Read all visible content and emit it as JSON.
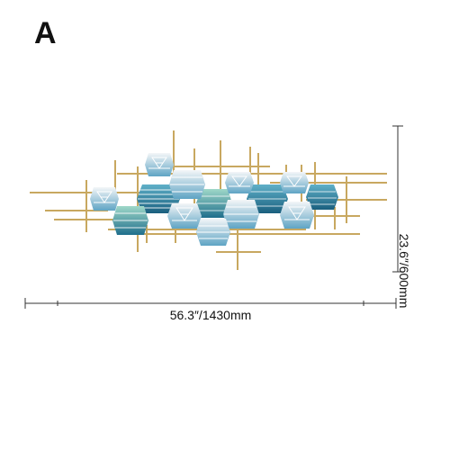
{
  "panel_label": "A",
  "dimensions": {
    "width": "56.3″/1430mm",
    "height": "23.6″/600mm"
  },
  "product": {
    "subject": "metal wall art with gold rods and hexagon panels",
    "colors": {
      "gold": "#c8a860",
      "teal_dark": "#1f6e8c",
      "teal_light": "#7fc8d8",
      "mint": "#9fd8c8",
      "white": "#f2f4f6"
    }
  }
}
